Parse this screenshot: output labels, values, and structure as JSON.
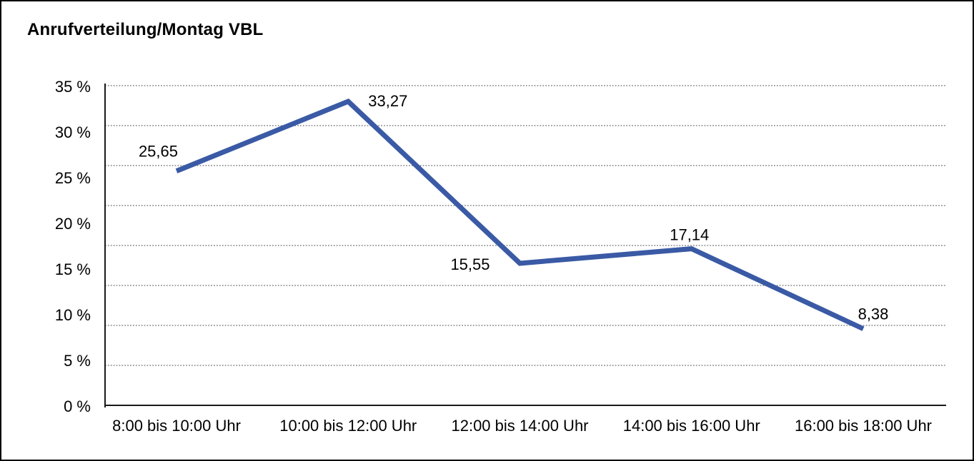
{
  "frame": {
    "background_color": "#ffffff",
    "border_color": "#000000"
  },
  "chart_data": {
    "type": "line",
    "title": "Anrufverteilung/Montag VBL",
    "categories": [
      "8:00 bis 10:00 Uhr",
      "10:00 bis 12:00 Uhr",
      "12:00 bis 14:00 Uhr",
      "14:00 bis 16:00 Uhr",
      "16:00 bis 18:00 Uhr"
    ],
    "series": [
      {
        "name": "Anrufverteilung Montag VBL",
        "values": [
          25.65,
          33.27,
          15.55,
          17.14,
          8.38
        ],
        "point_labels": [
          "25,65",
          "33,27",
          "15,55",
          "17,14",
          "8,38"
        ],
        "point_label_placements": [
          "above-left",
          "right",
          "left",
          "above",
          "above-right"
        ]
      }
    ],
    "xlabel": "",
    "ylabel": "",
    "ylim": [
      0,
      35
    ],
    "ytick_step": 5,
    "ytick_labels_top_to_bottom": [
      "35 %",
      "30 %",
      "25 %",
      "20 %",
      "15 %",
      "10 %",
      "5 %",
      "0 %"
    ],
    "grid": "horizontal-dotted",
    "gridline_count": 8,
    "legend_position": "none",
    "line_color": "#3A5AA5",
    "line_width": 7,
    "axis_color": "#1a1a1a",
    "gridline_color": "#6e6e6e",
    "text_color": "#000000"
  }
}
